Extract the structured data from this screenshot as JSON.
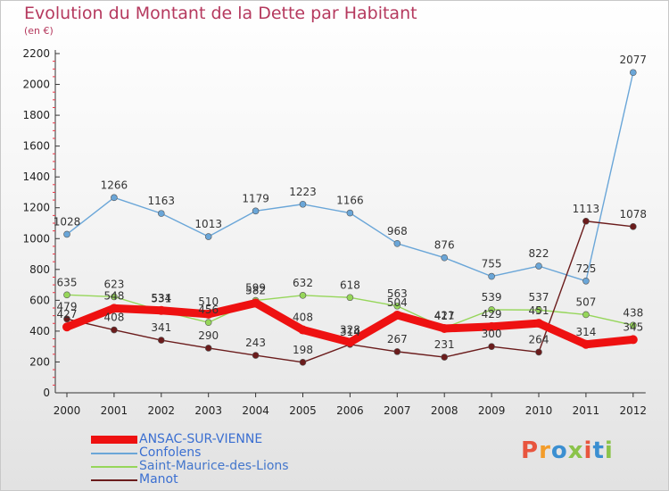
{
  "title": "Evolution du Montant de la Dette par Habitant",
  "subtitle": "(en €)",
  "logo": {
    "text": "Proxiti",
    "colors": [
      "#e8553e",
      "#f39c2a",
      "#3b8fd1",
      "#8bc34a",
      "#e8553e",
      "#3b8fd1",
      "#8bc34a"
    ]
  },
  "chart_data": {
    "type": "line",
    "x": [
      "2000",
      "2001",
      "2002",
      "2003",
      "2004",
      "2005",
      "2006",
      "2007",
      "2008",
      "2009",
      "2010",
      "2011",
      "2012"
    ],
    "ylim": [
      0,
      2200
    ],
    "yticks": [
      0,
      200,
      400,
      600,
      800,
      1000,
      1200,
      1400,
      1600,
      1800,
      2000,
      2200
    ],
    "grid": false,
    "legend_position": "bottom-left",
    "series": [
      {
        "name": "ANSAC-SUR-VIENNE",
        "color": "#ee1111",
        "width": 9,
        "marker": 5,
        "values": [
          427,
          548,
          534,
          510,
          582,
          408,
          328,
          504,
          417,
          429,
          451,
          314,
          345
        ],
        "labels": [
          "427",
          "548",
          "534",
          "510",
          "582",
          "408",
          "328",
          "504",
          "417",
          "429",
          "451",
          "314",
          "345"
        ]
      },
      {
        "name": "Confolens",
        "color": "#6aa6d8",
        "width": 1.4,
        "marker": 3.5,
        "values": [
          1028,
          1266,
          1163,
          1013,
          1179,
          1223,
          1166,
          968,
          876,
          755,
          822,
          725,
          2077
        ],
        "labels": [
          "1028",
          "1266",
          "1163",
          "1013",
          "1179",
          "1223",
          "1166",
          "968",
          "876",
          "755",
          "822",
          "725",
          "2077"
        ]
      },
      {
        "name": "Saint-Maurice-des-Lions",
        "color": "#96d65a",
        "width": 1.4,
        "marker": 3.5,
        "values": [
          635,
          623,
          531,
          456,
          599,
          632,
          618,
          563,
          421,
          539,
          537,
          507,
          438
        ],
        "labels": [
          "635",
          "623",
          "531",
          "456",
          "599",
          "632",
          "618",
          "563",
          "421",
          "539",
          "537",
          "507",
          "438"
        ]
      },
      {
        "name": "Manot",
        "color": "#6b1c1c",
        "width": 1.4,
        "marker": 3.5,
        "values": [
          479,
          408,
          341,
          290,
          243,
          198,
          314,
          267,
          231,
          300,
          264,
          1113,
          1078
        ],
        "labels": [
          "479",
          "408",
          "341",
          "290",
          "243",
          "198",
          "314",
          "267",
          "231",
          "300",
          "264",
          "1113",
          "1078"
        ]
      }
    ]
  }
}
